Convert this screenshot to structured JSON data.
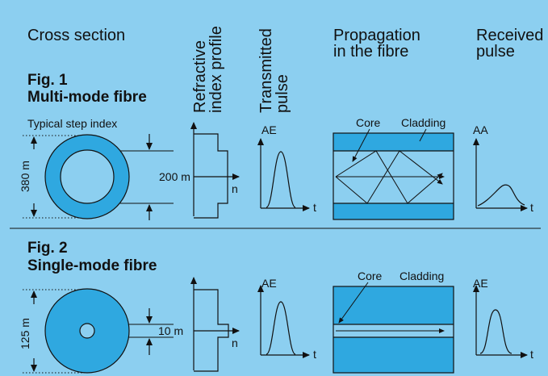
{
  "headers": {
    "cross_section": "Cross section",
    "refractive_line1": "Refractive",
    "refractive_line2": "index profile",
    "transmitted_line1": "Transmitted",
    "transmitted_line2": "pulse",
    "propagation_line1": "Propagation",
    "propagation_line2": "in the fibre",
    "received_line1": "Received",
    "received_line2": "pulse"
  },
  "fig1": {
    "label": "Fig. 1",
    "title": "Multi-mode fibre",
    "subtitle": "Typical step index",
    "outer_dim": "380 m",
    "core_dim": "200 m",
    "n_label": "n",
    "ae_label": "AE",
    "t_label": "t",
    "core_label": "Core",
    "cladding_label": "Cladding",
    "aa_label": "AA",
    "t2_label": "t"
  },
  "fig2": {
    "label": "Fig. 2",
    "title": "Single-mode fibre",
    "outer_dim": "125 m",
    "core_dim": "10 m",
    "n_label": "n",
    "ae_label": "AE",
    "t_label": "t",
    "core_label": "Core",
    "cladding_label": "Cladding",
    "ae2_label": "AE",
    "t2_label": "t"
  },
  "colors": {
    "background": "#8ccff0",
    "fibre_blue": "#2fa8e0",
    "line": "#111111"
  }
}
